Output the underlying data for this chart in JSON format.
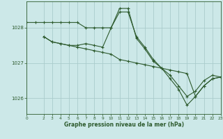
{
  "title": "Graphe pression niveau de la mer (hPa)",
  "bg_color": "#cce8e8",
  "grid_color": "#aacccc",
  "line_color": "#2d5a2d",
  "xlim": [
    0,
    23
  ],
  "ylim": [
    1025.55,
    1028.75
  ],
  "yticks": [
    1026,
    1027,
    1028
  ],
  "xticks": [
    0,
    2,
    3,
    4,
    5,
    6,
    7,
    8,
    9,
    10,
    11,
    12,
    13,
    14,
    15,
    16,
    17,
    18,
    19,
    20,
    21,
    22,
    23
  ],
  "line1_x": [
    0,
    1,
    2,
    3,
    4,
    5,
    6,
    7,
    8,
    9,
    10,
    11,
    12,
    13,
    14,
    15,
    16,
    17,
    18,
    19,
    20,
    21,
    22,
    23
  ],
  "line1_y": [
    1028.15,
    1028.15,
    1028.15,
    1028.15,
    1028.15,
    1028.15,
    1028.15,
    1028.0,
    1028.0,
    1028.0,
    1028.0,
    1028.45,
    1028.45,
    1027.75,
    1027.45,
    1027.1,
    1026.85,
    1026.65,
    1026.35,
    1026.05,
    1026.2,
    1026.5,
    1026.65,
    1026.6
  ],
  "line2_x": [
    2,
    3,
    4,
    5,
    6,
    7,
    8,
    9,
    10,
    11,
    12,
    13,
    14,
    15,
    16,
    17,
    18,
    19,
    20,
    21,
    22,
    23
  ],
  "line2_y": [
    1027.75,
    1027.6,
    1027.55,
    1027.5,
    1027.5,
    1027.55,
    1027.5,
    1027.45,
    1028.0,
    1028.55,
    1028.55,
    1027.7,
    1027.4,
    1027.05,
    1026.85,
    1026.55,
    1026.25,
    1025.8,
    1026.05,
    1026.35,
    1026.55,
    1026.6
  ],
  "line3_x": [
    2,
    3,
    4,
    5,
    6,
    7,
    8,
    9,
    10,
    11,
    12,
    13,
    14,
    15,
    16,
    17,
    18,
    19,
    20,
    21,
    22,
    23
  ],
  "line3_y": [
    1027.75,
    1027.6,
    1027.55,
    1027.5,
    1027.45,
    1027.4,
    1027.35,
    1027.3,
    1027.25,
    1027.1,
    1027.05,
    1027.0,
    1026.95,
    1026.9,
    1026.85,
    1026.8,
    1026.75,
    1026.7,
    1026.05,
    1026.35,
    1026.55,
    1026.6
  ]
}
